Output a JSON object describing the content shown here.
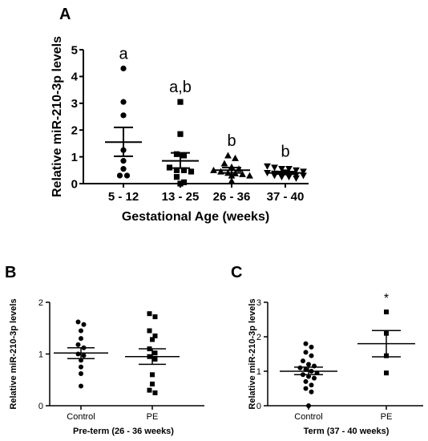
{
  "panels": {
    "a": {
      "label": "A"
    },
    "b": {
      "label": "B"
    },
    "c": {
      "label": "C"
    }
  },
  "chart_data": [
    {
      "id": "a",
      "type": "scatter",
      "title": "",
      "xlabel": "Gestational Age (weeks)",
      "ylabel": "Relative miR-210-3p levels",
      "ylim": [
        0,
        5
      ],
      "yticks": [
        0,
        1,
        2,
        3,
        4,
        5
      ],
      "categories": [
        "5 - 12",
        "13 - 25",
        "26 - 36",
        "37 - 40"
      ],
      "significance_labels": [
        "a",
        "a,b",
        "b",
        "b"
      ],
      "markers": [
        "circle",
        "square",
        "triangle-up",
        "triangle-down"
      ],
      "groups": [
        {
          "category": "5 - 12",
          "values": [
            4.3,
            3.05,
            2.55,
            1.25,
            0.85,
            0.55,
            0.3,
            0.3
          ],
          "mean": 1.55,
          "sem_upper": 2.1,
          "sem_lower": 1.02
        },
        {
          "category": "13 - 25",
          "values": [
            3.05,
            1.85,
            1.1,
            1.05,
            0.6,
            0.5,
            0.5,
            0.45,
            0.25,
            0.05,
            0.0
          ],
          "mean": 0.85,
          "sem_upper": 1.15,
          "sem_lower": 0.58
        },
        {
          "category": "26 - 36",
          "values": [
            1.05,
            0.95,
            0.75,
            0.62,
            0.55,
            0.5,
            0.45,
            0.4,
            0.38,
            0.35,
            0.3,
            0.3,
            0.1
          ],
          "mean": 0.5,
          "sem_upper": 0.6,
          "sem_lower": 0.4
        },
        {
          "category": "37 - 40",
          "values": [
            0.65,
            0.6,
            0.55,
            0.55,
            0.5,
            0.45,
            0.42,
            0.4,
            0.38,
            0.35,
            0.35,
            0.32,
            0.3,
            0.3,
            0.25,
            0.25,
            0.2
          ],
          "mean": 0.4,
          "sem_upper": 0.45,
          "sem_lower": 0.36
        }
      ]
    },
    {
      "id": "b",
      "type": "scatter",
      "title": "",
      "xlabel": "Pre-term (26 - 36 weeks)",
      "ylabel": "Relative miR-210-3p levels",
      "ylim": [
        0,
        2
      ],
      "yticks": [
        0,
        1,
        2
      ],
      "categories": [
        "Control",
        "PE"
      ],
      "significance_labels": [
        "",
        ""
      ],
      "markers": [
        "circle",
        "square"
      ],
      "groups": [
        {
          "category": "Control",
          "values": [
            1.62,
            1.57,
            1.45,
            1.3,
            1.18,
            1.12,
            1.0,
            0.97,
            0.88,
            0.75,
            0.62,
            0.38
          ],
          "mean": 1.02,
          "sem_upper": 1.12,
          "sem_lower": 0.91
        },
        {
          "category": "PE",
          "values": [
            1.78,
            1.72,
            1.45,
            1.35,
            1.28,
            1.1,
            1.02,
            0.95,
            0.9,
            0.6,
            0.42,
            0.3,
            0.25
          ],
          "mean": 0.95,
          "sem_upper": 1.1,
          "sem_lower": 0.8
        }
      ]
    },
    {
      "id": "c",
      "type": "scatter",
      "title": "",
      "xlabel": "Term (37 - 40 weeks)",
      "ylabel": "Relative miR-210-3p levels",
      "ylim": [
        0,
        3
      ],
      "yticks": [
        0,
        1,
        2,
        3
      ],
      "categories": [
        "Control",
        "PE"
      ],
      "significance_labels": [
        "",
        "*"
      ],
      "markers": [
        "circle",
        "square"
      ],
      "groups": [
        {
          "category": "Control",
          "values": [
            1.8,
            1.7,
            1.55,
            1.45,
            1.3,
            1.2,
            1.15,
            1.1,
            1.05,
            1.0,
            0.95,
            0.9,
            0.85,
            0.8,
            0.7,
            0.6,
            0.5,
            0.4,
            0.0
          ],
          "mean": 1.0,
          "sem_upper": 1.12,
          "sem_lower": 0.9
        },
        {
          "category": "PE",
          "values": [
            2.72,
            2.1,
            1.45,
            0.95
          ],
          "mean": 1.8,
          "sem_upper": 2.18,
          "sem_lower": 1.42
        }
      ]
    }
  ]
}
